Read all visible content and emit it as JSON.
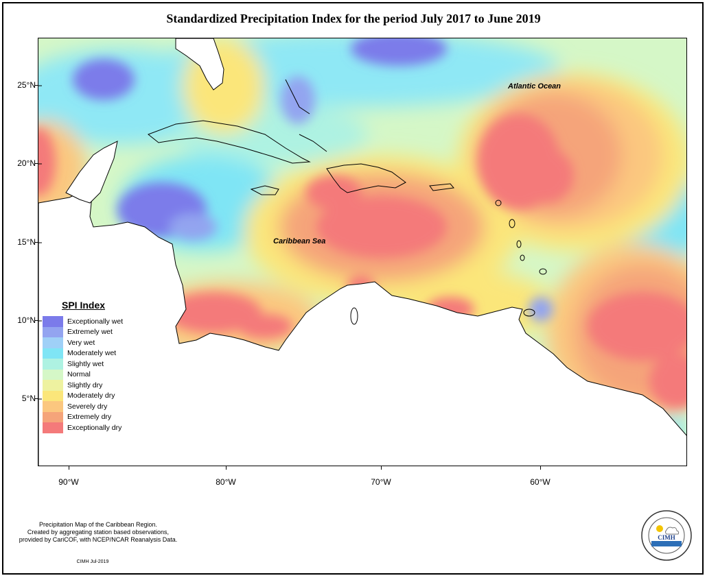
{
  "title": "Standardized Precipitation Index for the period July 2017 to June 2019",
  "map": {
    "y_ticks": [
      "25°N",
      "20°N",
      "15°N",
      "10°N",
      "5°N"
    ],
    "x_ticks": [
      "90°W",
      "80°W",
      "70°W",
      "60°W"
    ],
    "labels": {
      "atlantic": "Atlantic Ocean",
      "caribbean": "Caribbean Sea"
    }
  },
  "legend": {
    "title": "SPI Index",
    "items": [
      {
        "label": "Exceptionally wet",
        "color": "#7b7bea"
      },
      {
        "label": "Extremely wet",
        "color": "#93a4f0"
      },
      {
        "label": "Very wet",
        "color": "#9fd0f7"
      },
      {
        "label": "Moderately wet",
        "color": "#7fe5f5"
      },
      {
        "label": "Slightly wet",
        "color": "#aef2e2"
      },
      {
        "label": "Normal",
        "color": "#d5f7c7"
      },
      {
        "label": "Slightly dry",
        "color": "#eef2a0"
      },
      {
        "label": "Moderately dry",
        "color": "#fbe67a"
      },
      {
        "label": "Severely dry",
        "color": "#fbc77f"
      },
      {
        "label": "Extremely dry",
        "color": "#f5a47a"
      },
      {
        "label": "Exceptionally dry",
        "color": "#f47a7a"
      }
    ]
  },
  "footnote": {
    "line1": "Precipitation Map of the Caribbean Region.",
    "line2": "Created by aggregating station based observations,",
    "line3": "provided by CariCOF, with NCEP/NCAR Reanalysis Data."
  },
  "credit": "CIMH Jul-2019",
  "logo": {
    "text": "CIMH",
    "ring_text_top": "Caribbean Institute for",
    "ring_text_bottom": "Meteorology and Hydrology"
  }
}
